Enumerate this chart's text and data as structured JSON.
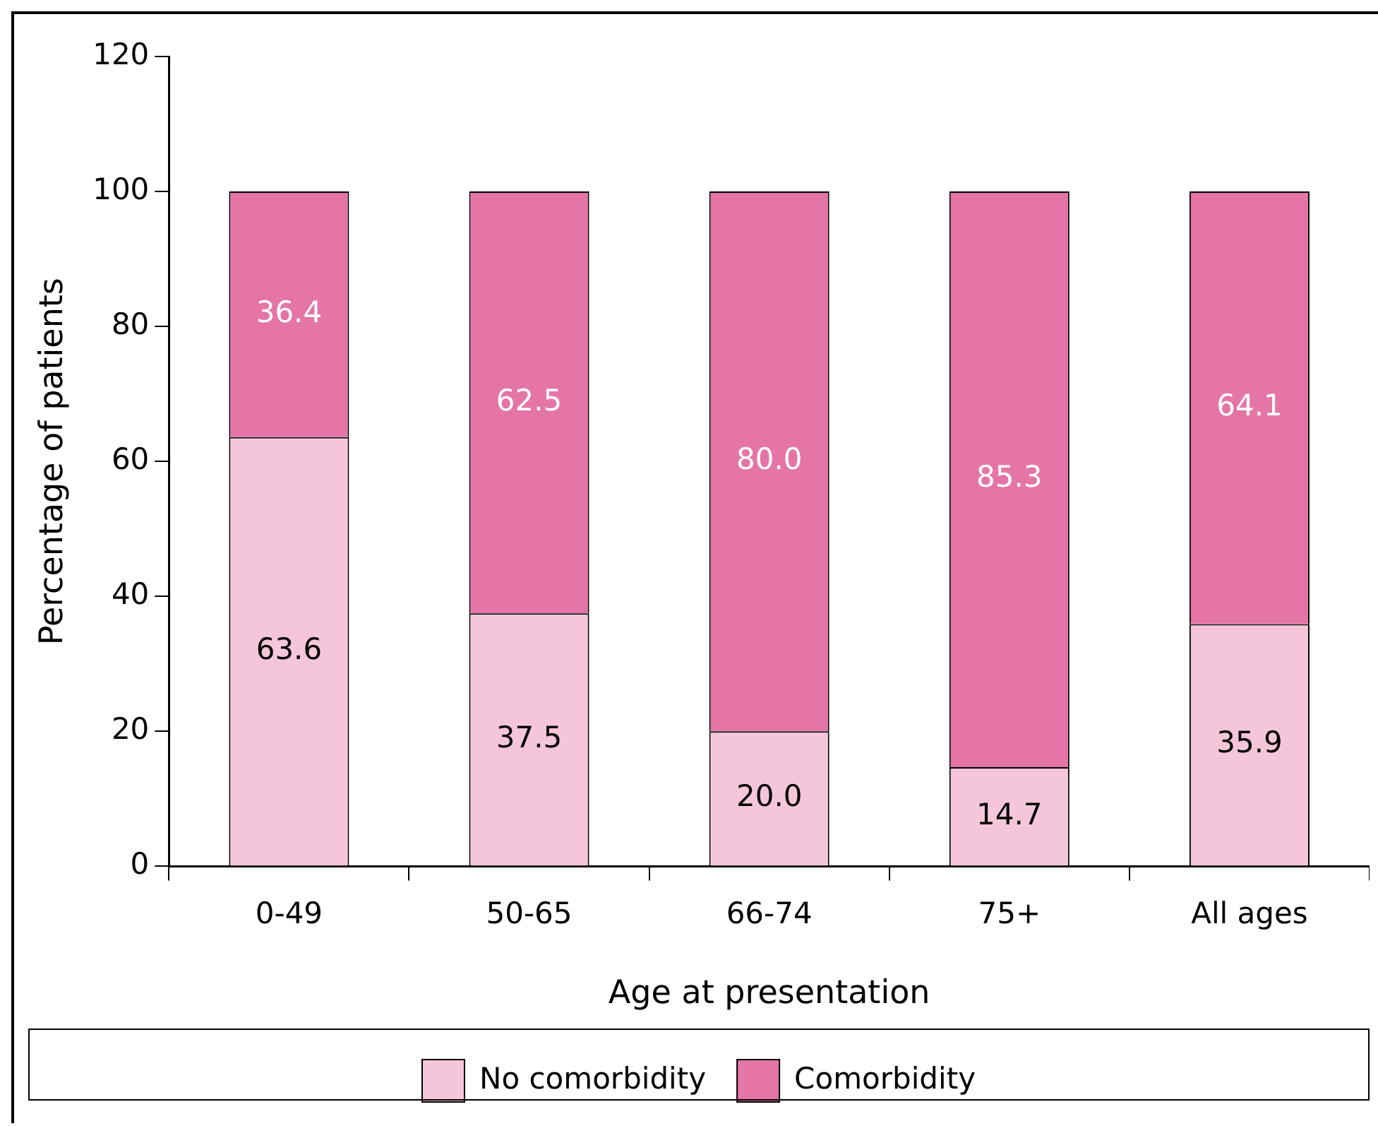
{
  "chart_data": {
    "type": "bar",
    "stacked": true,
    "xlabel": "Age at presentation",
    "ylabel": "Percentage of patients",
    "categories": [
      "0-49",
      "50-65",
      "66-74",
      "75+",
      "All ages"
    ],
    "series": [
      {
        "name": "No comorbidity",
        "color": "#f5c6da",
        "values": [
          63.6,
          37.5,
          20.0,
          14.7,
          35.9
        ],
        "value_labels": [
          "63.6",
          "37.5",
          "20.0",
          "14.7",
          "35.9"
        ]
      },
      {
        "name": "Comorbidity",
        "color": "#e475a6",
        "values": [
          36.4,
          62.5,
          80.0,
          85.3,
          64.1
        ],
        "value_labels": [
          "36.4",
          "62.5",
          "80.0",
          "85.3",
          "64.1"
        ]
      }
    ],
    "ylim": [
      0,
      120
    ],
    "yticks": [
      0,
      20,
      40,
      60,
      80,
      100,
      120
    ],
    "grid": false,
    "legend": "bottom"
  }
}
